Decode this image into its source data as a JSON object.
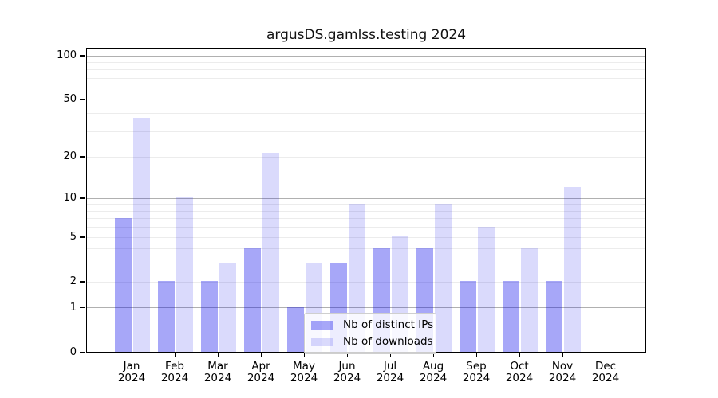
{
  "chart_data": {
    "type": "bar",
    "title": "argusDS.gamlss.testing 2024",
    "year_label": "2024",
    "categories": [
      "Jan",
      "Feb",
      "Mar",
      "Apr",
      "May",
      "Jun",
      "Jul",
      "Aug",
      "Sep",
      "Oct",
      "Nov",
      "Dec"
    ],
    "series": [
      {
        "name": "Nb of distinct IPs",
        "color": "#0000eb58",
        "values": [
          7,
          2,
          2,
          4,
          1,
          3,
          4,
          4,
          2,
          2,
          2,
          0
        ]
      },
      {
        "name": "Nb of downloads",
        "color": "#0000eb25",
        "values": [
          37,
          10,
          3,
          21,
          3,
          9,
          5,
          9,
          6,
          4,
          12,
          0
        ]
      }
    ],
    "yscale": "log1p",
    "ylim": [
      0,
      113
    ],
    "yticks": [
      0,
      1,
      2,
      5,
      10,
      20,
      50,
      100
    ],
    "major_gridlines": [
      1,
      10,
      100
    ],
    "minor_gridlines": [
      2,
      3,
      4,
      5,
      6,
      7,
      8,
      9,
      20,
      30,
      40,
      50,
      60,
      70,
      80,
      90
    ],
    "grid": true,
    "legend_position": "bottom-center",
    "xlabel": "",
    "ylabel": ""
  },
  "colors": {
    "major_grid": "#b0b0b0",
    "minor_grid": "#ececec",
    "axis": "#000000",
    "background": "#ffffff"
  }
}
